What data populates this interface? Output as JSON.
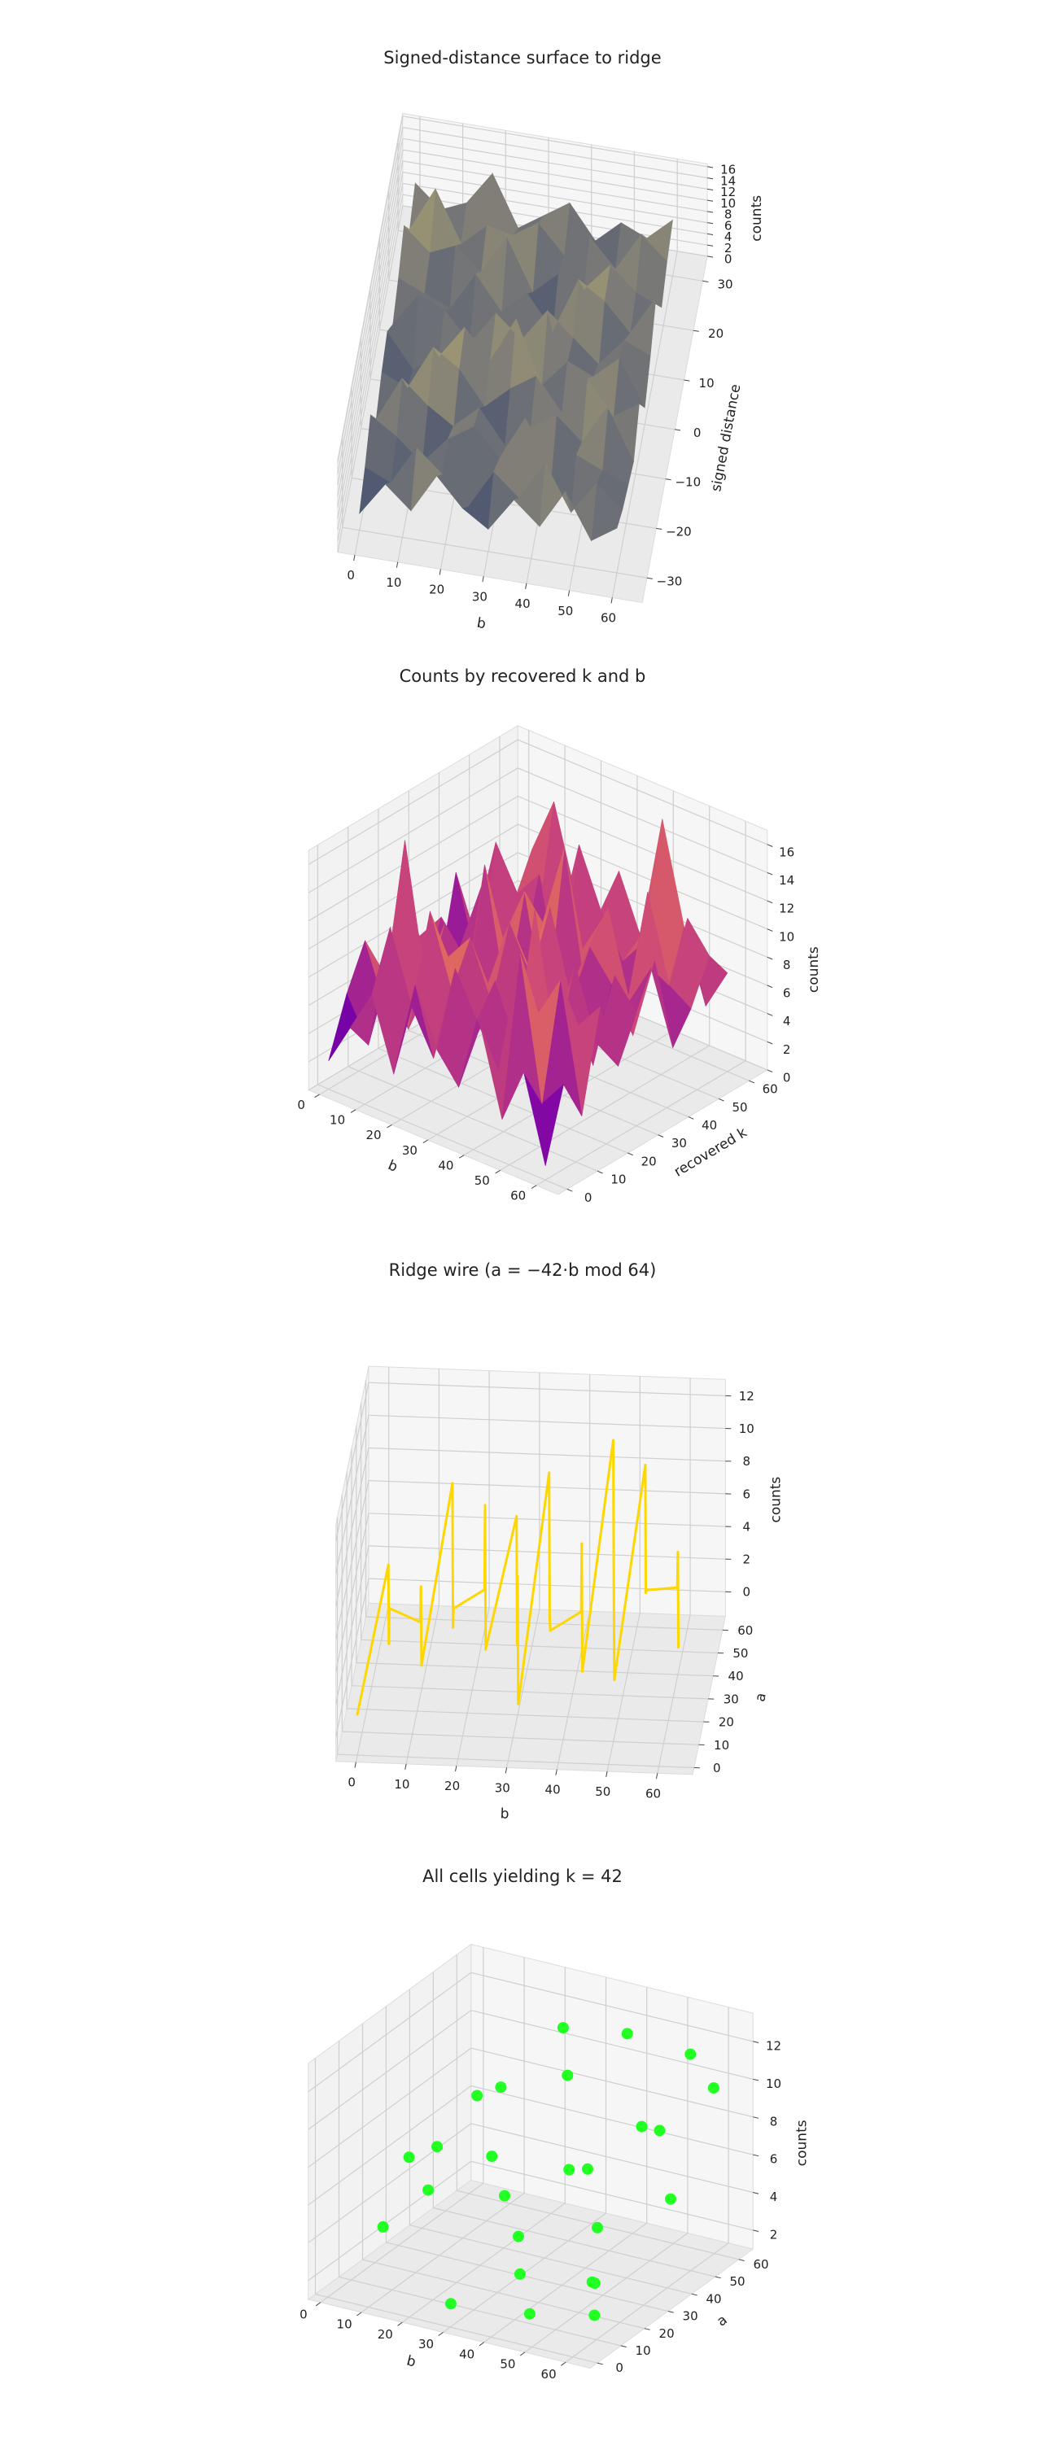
{
  "chart_data": [
    {
      "type": "surface",
      "title": "Signed-distance surface to ridge",
      "xlabel": "b",
      "ylabel": "signed distance",
      "zlabel": "counts",
      "colormap": [
        "#00224e",
        "#3b496c",
        "#7c7b78",
        "#bcaf6f",
        "#fee838"
      ],
      "x": [
        0,
        6,
        12,
        18,
        24,
        30,
        36,
        42,
        48,
        54,
        60
      ],
      "y": [
        -30,
        -24,
        -18,
        -12,
        -6,
        0,
        6,
        12,
        18,
        24,
        30
      ],
      "z": [
        [
          3,
          9,
          5,
          12,
          7,
          4,
          10,
          6,
          13,
          5,
          8
        ],
        [
          6,
          4,
          11,
          7,
          2,
          9,
          5,
          12,
          4,
          10,
          6
        ],
        [
          10,
          7,
          3,
          8,
          11,
          6,
          14,
          3,
          9,
          7,
          5
        ],
        [
          4,
          12,
          8,
          5,
          9,
          3,
          7,
          10,
          6,
          13,
          4
        ],
        [
          7,
          5,
          13,
          10,
          4,
          8,
          11,
          5,
          12,
          6,
          9
        ],
        [
          9,
          3,
          6,
          12,
          7,
          15,
          4,
          9,
          7,
          11,
          3
        ],
        [
          5,
          11,
          9,
          4,
          10,
          6,
          12,
          8,
          4,
          9,
          7
        ],
        [
          8,
          6,
          4,
          11,
          5,
          9,
          3,
          13,
          10,
          5,
          12
        ],
        [
          12,
          8,
          10,
          6,
          13,
          4,
          8,
          6,
          11,
          7,
          5
        ],
        [
          6,
          14,
          5,
          9,
          8,
          11,
          6,
          10,
          5,
          12,
          8
        ],
        [
          9,
          5,
          7,
          13,
          4,
          7,
          10,
          4,
          8,
          6,
          10
        ]
      ],
      "xlim": [
        -4,
        67
      ],
      "ylim": [
        -35,
        35
      ],
      "zlim": [
        0,
        16.5
      ],
      "xticks": [
        0,
        10,
        20,
        30,
        40,
        50,
        60
      ],
      "yticks": [
        {
          "value": -30,
          "label": "−30"
        },
        {
          "value": -20,
          "label": "−20"
        },
        {
          "value": -10,
          "label": "−10"
        },
        0,
        10,
        20,
        30
      ],
      "zticks": [
        0,
        2,
        4,
        6,
        8,
        10,
        12,
        14,
        16
      ]
    },
    {
      "type": "surface",
      "title": "Counts by recovered k and b",
      "xlabel": "b",
      "ylabel": "recovered k",
      "zlabel": "counts",
      "colormap": [
        "#0d0887",
        "#7e03a8",
        "#cc4778",
        "#f89540",
        "#f0f921"
      ],
      "x": [
        0,
        6,
        12,
        18,
        24,
        30,
        36,
        42,
        48,
        54,
        60
      ],
      "y": [
        0,
        6,
        12,
        18,
        24,
        30,
        36,
        42,
        48,
        54,
        60
      ],
      "z": [
        [
          2,
          5,
          8,
          3,
          10,
          6,
          4,
          9,
          3,
          7,
          1
        ],
        [
          6,
          3,
          12,
          7,
          4,
          11,
          8,
          5,
          14,
          4,
          6
        ],
        [
          9,
          7,
          4,
          13,
          8,
          5,
          10,
          6,
          9,
          12,
          3
        ],
        [
          4,
          16,
          6,
          9,
          11,
          7,
          3,
          15,
          5,
          8,
          10
        ],
        [
          11,
          5,
          10,
          4,
          7,
          12,
          9,
          4,
          11,
          6,
          5
        ],
        [
          7,
          9,
          3,
          14,
          5,
          8,
          13,
          7,
          3,
          10,
          8
        ],
        [
          3,
          6,
          11,
          8,
          12,
          4,
          6,
          10,
          8,
          5,
          11
        ],
        [
          10,
          4,
          7,
          5,
          9,
          15,
          5,
          12,
          6,
          9,
          4
        ],
        [
          5,
          12,
          9,
          11,
          3,
          7,
          10,
          4,
          13,
          7,
          6
        ],
        [
          8,
          7,
          5,
          6,
          13,
          9,
          6,
          8,
          5,
          11,
          9
        ],
        [
          4,
          10,
          14,
          8,
          5,
          11,
          7,
          16,
          9,
          4,
          7
        ]
      ],
      "xlim": [
        -3,
        66
      ],
      "ylim": [
        -3,
        66
      ],
      "zlim": [
        0,
        17
      ],
      "xticks": [
        0,
        10,
        20,
        30,
        40,
        50,
        60
      ],
      "yticks": [
        0,
        10,
        20,
        30,
        40,
        50,
        60
      ],
      "zticks": [
        0,
        2,
        4,
        6,
        8,
        10,
        12,
        14,
        16
      ]
    },
    {
      "type": "line3d",
      "title": "Ridge wire  (a = −42·b mod 64)",
      "xlabel": "b",
      "ylabel": "a",
      "zlabel": "counts",
      "color": "#ffd700",
      "x": [
        0,
        2,
        4,
        6,
        8,
        10,
        12,
        14,
        16,
        18,
        20,
        22,
        24,
        26,
        28,
        30,
        32,
        34,
        36,
        38,
        40,
        42,
        44,
        46,
        48,
        50,
        52,
        54,
        56,
        58,
        60,
        62
      ],
      "y": [
        0,
        44,
        24,
        4,
        48,
        28,
        8,
        52,
        32,
        12,
        56,
        36,
        16,
        60,
        40,
        20,
        0,
        44,
        24,
        4,
        48,
        28,
        8,
        52,
        32,
        12,
        56,
        36,
        16,
        60,
        40,
        20
      ],
      "z": [
        1,
        4,
        2,
        7,
        0,
        5,
        3,
        8,
        2,
        6,
        1,
        9,
        3,
        5,
        0,
        7,
        2,
        10,
        4,
        6,
        1,
        8,
        3,
        11,
        5,
        2,
        9,
        4,
        7,
        1,
        6,
        3
      ],
      "xlim": [
        -4,
        67
      ],
      "ylim": [
        -3,
        66
      ],
      "zlim": [
        -1.5,
        13
      ],
      "xticks": [
        0,
        10,
        20,
        30,
        40,
        50,
        60
      ],
      "yticks": [
        0,
        10,
        20,
        30,
        40,
        50,
        60
      ],
      "zticks": [
        0,
        2,
        4,
        6,
        8,
        10,
        12
      ]
    },
    {
      "type": "scatter3d",
      "title": "All cells yielding k = 42",
      "xlabel": "b",
      "ylabel": "a",
      "zlabel": "counts",
      "color": "#22ff22",
      "x": [
        2,
        6,
        9,
        13,
        17,
        20,
        23,
        26,
        29,
        31,
        34,
        36,
        39,
        41,
        44,
        46,
        48,
        51,
        53,
        55,
        57,
        59,
        61,
        62,
        63,
        10
      ],
      "y": [
        20,
        36,
        54,
        12,
        44,
        8,
        60,
        30,
        2,
        48,
        22,
        40,
        14,
        56,
        34,
        6,
        50,
        26,
        62,
        18,
        42,
        10,
        58,
        38,
        4,
        46
      ],
      "z": [
        3,
        6,
        4,
        8,
        9,
        7,
        11,
        5,
        2,
        10,
        4,
        6,
        3,
        12,
        7,
        2,
        8,
        5,
        11,
        3,
        9,
        4,
        10,
        6,
        3,
        8
      ],
      "xlim": [
        -3,
        66
      ],
      "ylim": [
        -3,
        66
      ],
      "zlim": [
        1,
        13.5
      ],
      "xticks": [
        0,
        10,
        20,
        30,
        40,
        50,
        60
      ],
      "yticks": [
        0,
        10,
        20,
        30,
        40,
        50,
        60
      ],
      "zticks": [
        2,
        4,
        6,
        8,
        10,
        12
      ]
    }
  ]
}
